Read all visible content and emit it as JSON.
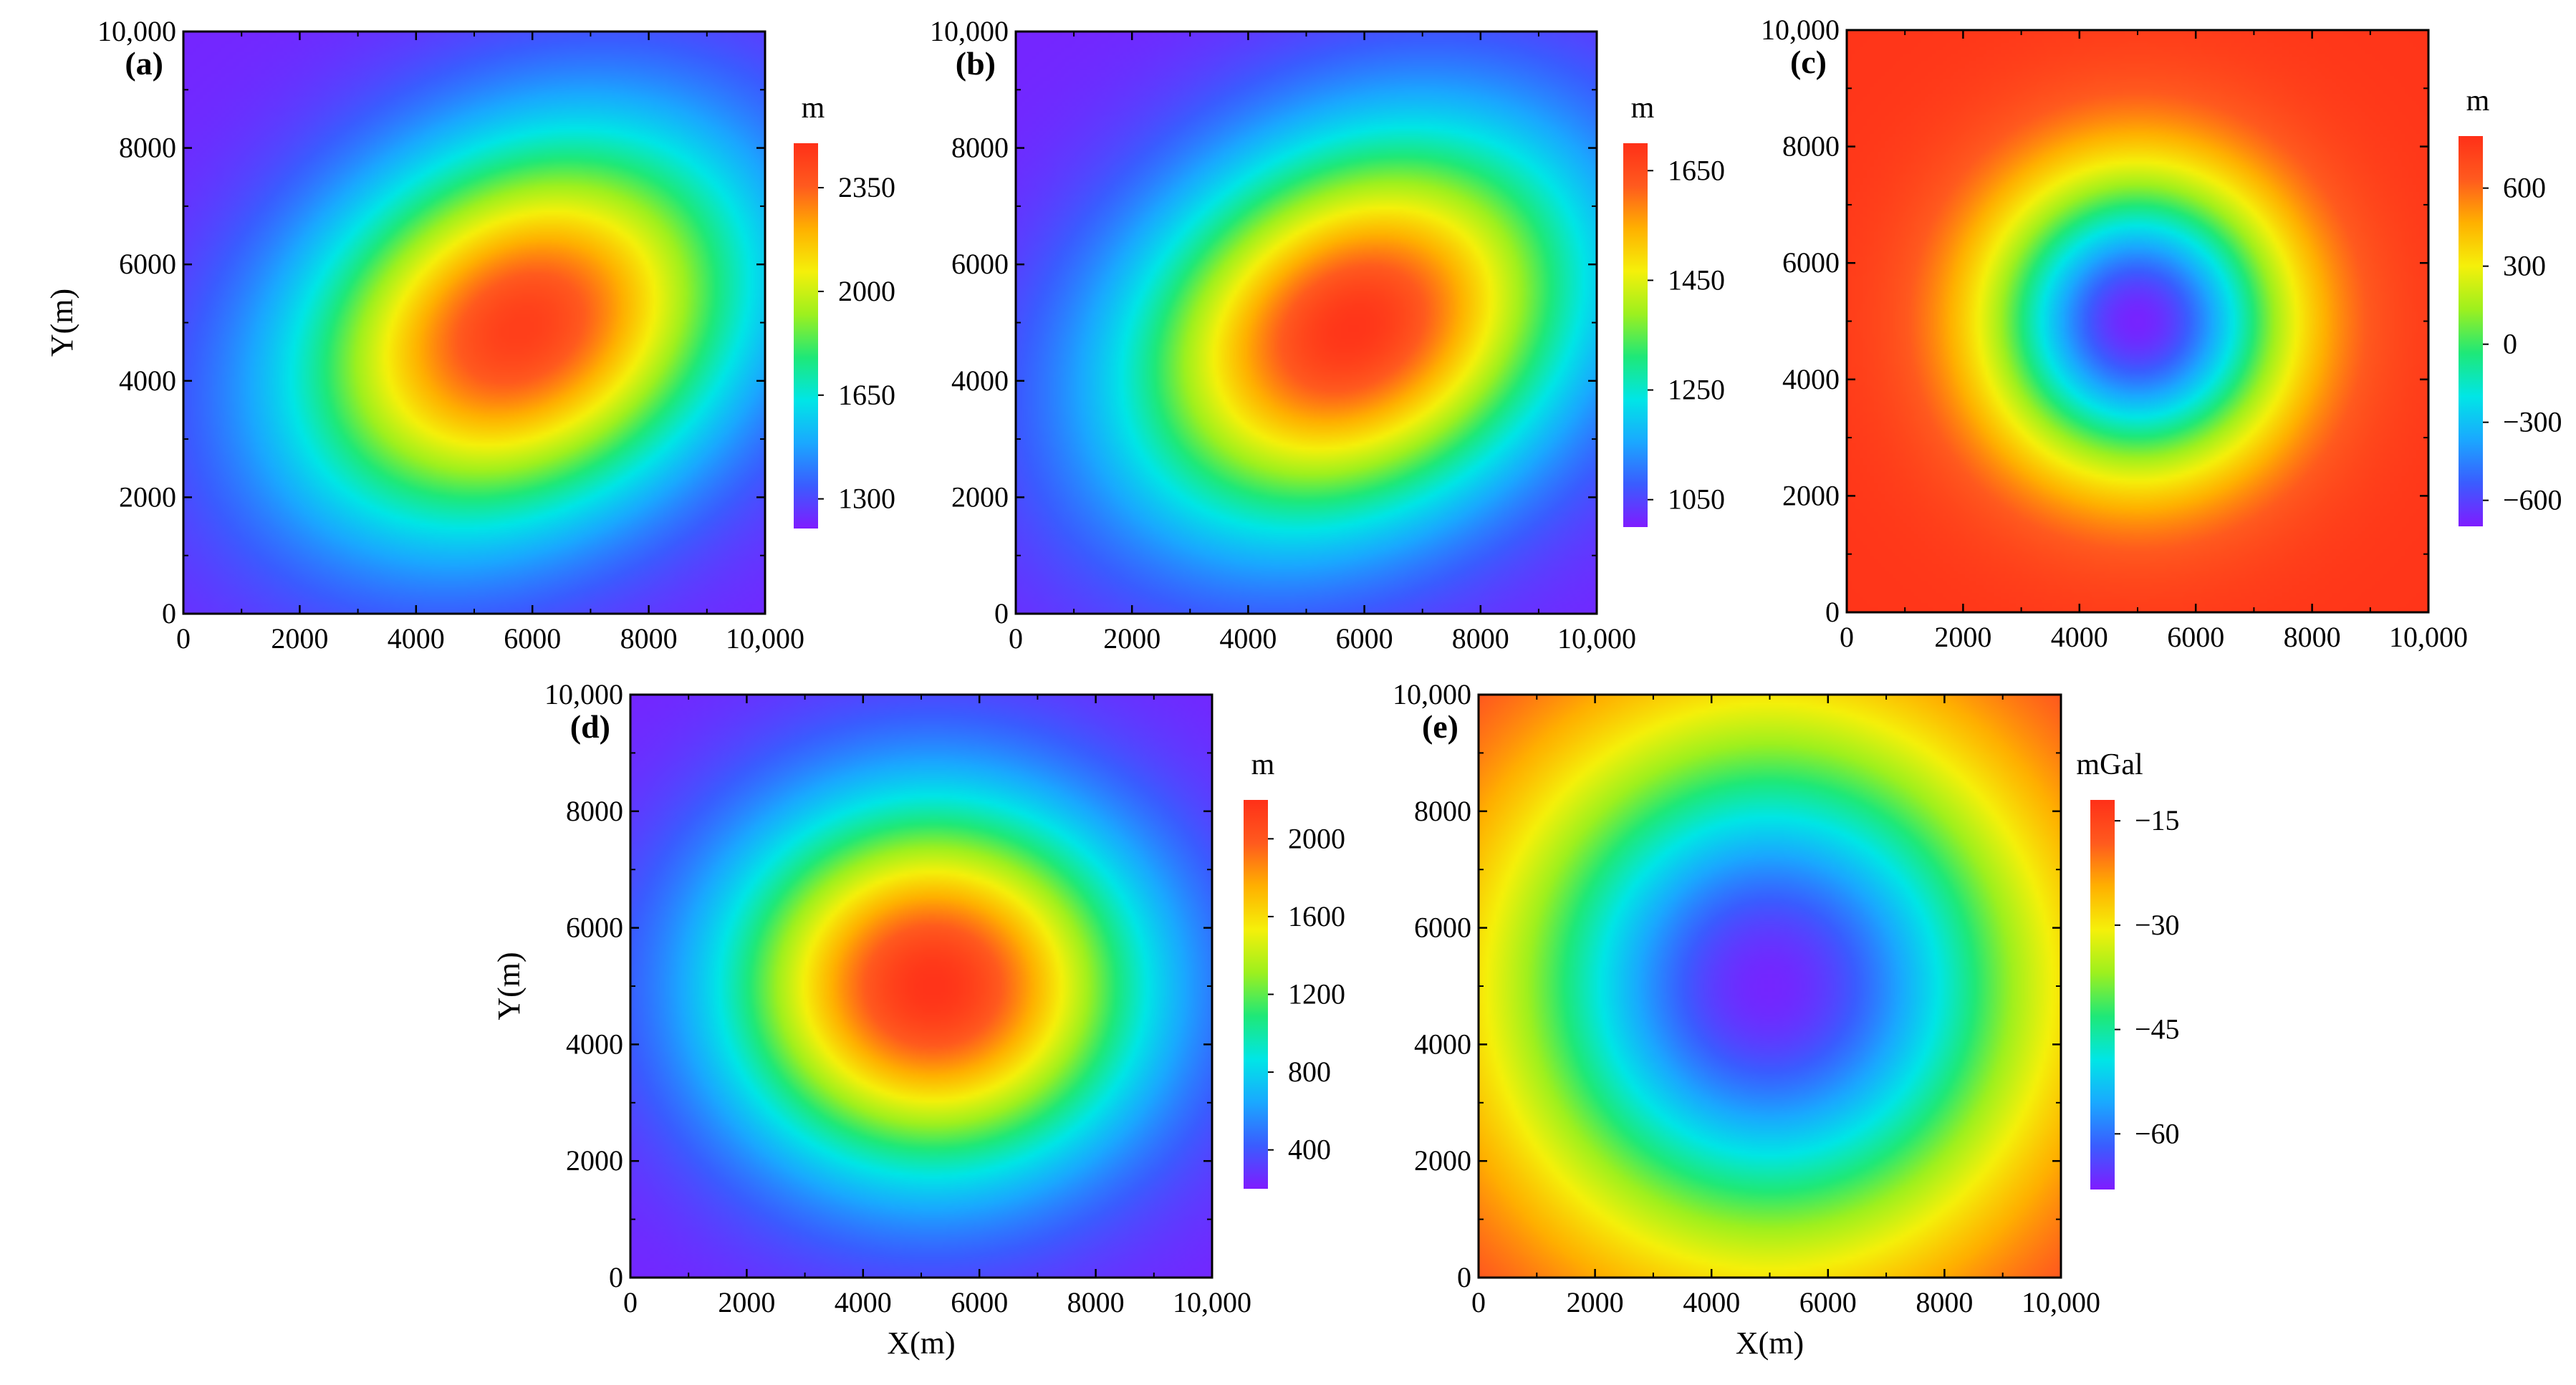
{
  "figure": {
    "panel_count": 5
  },
  "chart_data": [
    {
      "type": "heatmap",
      "panel": "(a)",
      "unit": "m",
      "xlim": [
        0,
        10000
      ],
      "ylim": [
        0,
        10000
      ],
      "xticks": [
        "0",
        "2000",
        "4000",
        "6000",
        "8000",
        "10,000"
      ],
      "yticks": [
        "0",
        "2000",
        "4000",
        "6000",
        "8000",
        "10,000"
      ],
      "xlabel": "",
      "ylabel": "Y(m)",
      "colorbar": {
        "min": 1200,
        "max": 2500,
        "ticks": [
          1300,
          1650,
          2000,
          2350
        ]
      },
      "field": {
        "kind": "peak",
        "center": [
          5800,
          4900
        ],
        "value_peak": 2450,
        "value_edge": 1220,
        "major_axis_m": 4000,
        "minor_axis_m": 3000,
        "rotation_deg": 30
      }
    },
    {
      "type": "heatmap",
      "panel": "(b)",
      "unit": "m",
      "xlim": [
        0,
        10000
      ],
      "ylim": [
        0,
        10000
      ],
      "xticks": [
        "0",
        "2000",
        "4000",
        "6000",
        "8000",
        "10,000"
      ],
      "yticks": [
        "0",
        "2000",
        "4000",
        "6000",
        "8000",
        "10,000"
      ],
      "xlabel": "",
      "ylabel": "",
      "colorbar": {
        "min": 1000,
        "max": 1700,
        "ticks": [
          1050,
          1250,
          1450,
          1650
        ]
      },
      "field": {
        "kind": "peak",
        "center": [
          5800,
          4900
        ],
        "value_peak": 1690,
        "value_edge": 1010,
        "major_axis_m": 4000,
        "minor_axis_m": 3000,
        "rotation_deg": 30
      }
    },
    {
      "type": "heatmap",
      "panel": "(c)",
      "unit": "m",
      "xlim": [
        0,
        10000
      ],
      "ylim": [
        0,
        10000
      ],
      "xticks": [
        "0",
        "2000",
        "4000",
        "6000",
        "8000",
        "10,000"
      ],
      "yticks": [
        "0",
        "2000",
        "4000",
        "6000",
        "8000",
        "10,000"
      ],
      "xlabel": "",
      "ylabel": "",
      "colorbar": {
        "min": -700,
        "max": 800,
        "ticks": [
          -600,
          -300,
          0,
          300,
          600
        ]
      },
      "tick_labels_display": [
        "−600",
        "−300",
        "0",
        "300",
        "600"
      ],
      "field": {
        "kind": "trough",
        "center": [
          5000,
          5000
        ],
        "value_peak": -680,
        "value_edge": 780,
        "major_axis_m": 2600,
        "minor_axis_m": 2600,
        "rotation_deg": 0
      }
    },
    {
      "type": "heatmap",
      "panel": "(d)",
      "unit": "m",
      "xlim": [
        0,
        10000
      ],
      "ylim": [
        0,
        10000
      ],
      "xticks": [
        "0",
        "2000",
        "4000",
        "6000",
        "8000",
        "10,000"
      ],
      "yticks": [
        "0",
        "2000",
        "4000",
        "6000",
        "8000",
        "10,000"
      ],
      "xlabel": "X(m)",
      "ylabel": "Y(m)",
      "colorbar": {
        "min": 200,
        "max": 2200,
        "ticks": [
          400,
          800,
          1200,
          1600,
          2000
        ]
      },
      "field": {
        "kind": "peak",
        "center": [
          5200,
          5000
        ],
        "value_peak": 2180,
        "value_edge": 220,
        "major_axis_m": 3500,
        "minor_axis_m": 3100,
        "rotation_deg": 0
      }
    },
    {
      "type": "heatmap",
      "panel": "(e)",
      "unit": "mGal",
      "xlim": [
        0,
        10000
      ],
      "ylim": [
        0,
        10000
      ],
      "xticks": [
        "0",
        "2000",
        "4000",
        "6000",
        "8000",
        "10,000"
      ],
      "yticks": [
        "0",
        "2000",
        "4000",
        "6000",
        "8000",
        "10,000"
      ],
      "xlabel": "X(m)",
      "ylabel": "",
      "colorbar": {
        "min": -68,
        "max": -12,
        "ticks": [
          -60,
          -45,
          -30,
          -15
        ]
      },
      "tick_labels_display": [
        "−60",
        "−45",
        "−30",
        "−15"
      ],
      "field": {
        "kind": "trough",
        "center": [
          5000,
          5000
        ],
        "value_peak": -67,
        "value_edge": -13,
        "major_axis_m": 4600,
        "minor_axis_m": 4600,
        "rotation_deg": 0
      }
    }
  ],
  "colormap": [
    "#7f1cff",
    "#3a5cff",
    "#1aa8ff",
    "#00e6e6",
    "#1ee878",
    "#9df01e",
    "#f5f00a",
    "#ffb000",
    "#ff5a1e",
    "#ff3018"
  ]
}
